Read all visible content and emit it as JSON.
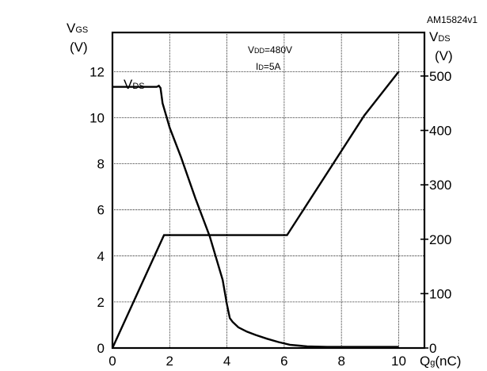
{
  "chart_data": {
    "type": "line",
    "figure_id": "AM15824v1",
    "annotation": {
      "vdd_label": "V",
      "vdd_sub": "DD",
      "vdd_value": "=480V",
      "id_label": "I",
      "id_sub": "D",
      "id_value": "=5A"
    },
    "left_axis": {
      "label_main": "V",
      "label_sub": "GS",
      "unit": "(V)",
      "ylim": [
        0,
        13.7
      ],
      "ticks": [
        0,
        2,
        4,
        6,
        8,
        10,
        12
      ]
    },
    "right_axis": {
      "label_main": "V",
      "label_sub": "DS",
      "unit": "(V)",
      "ylim": [
        0,
        580
      ],
      "ticks": [
        0,
        100,
        200,
        300,
        400,
        500
      ]
    },
    "x_axis": {
      "label_main": "Q",
      "label_sub": "g",
      "unit": "(nC)",
      "xlim": [
        0,
        10.9
      ],
      "ticks": [
        0,
        2,
        4,
        6,
        8,
        10
      ]
    },
    "series": [
      {
        "name_main": "V",
        "name_sub": "DS",
        "axis": "right",
        "x": [
          0,
          1.55,
          1.62,
          1.68,
          1.75,
          2.0,
          2.4,
          2.9,
          3.4,
          3.85,
          4.0,
          4.1,
          4.2,
          4.4,
          4.7,
          5.0,
          5.4,
          5.8,
          6.2,
          6.8,
          7.5,
          8.5,
          10.0
        ],
        "values": [
          480,
          480,
          482,
          478,
          450,
          405,
          350,
          275,
          205,
          125,
          80,
          55,
          48,
          38,
          30,
          24,
          17,
          11,
          6,
          3,
          2,
          2,
          2
        ]
      },
      {
        "name_main": "V",
        "name_sub": "GS",
        "axis": "left",
        "x": [
          0,
          1.8,
          6.1,
          8.8,
          10.0
        ],
        "values": [
          0,
          4.9,
          4.9,
          10.1,
          12.0
        ]
      }
    ]
  }
}
